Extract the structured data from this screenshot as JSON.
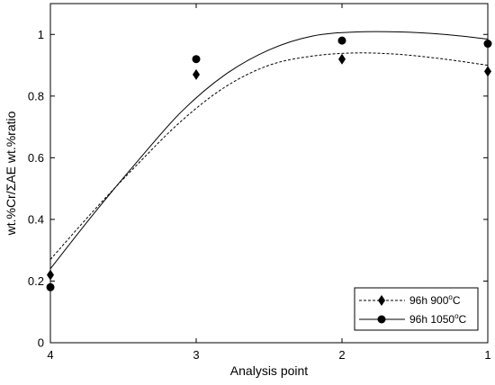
{
  "chart_data": {
    "type": "scatter",
    "title": "",
    "xlabel": "Analysis point",
    "ylabel": "wt.%Cr/ΣAE wt.%ratio",
    "x_reversed": true,
    "xlim": [
      1,
      4
    ],
    "ylim": [
      0,
      1.1
    ],
    "xticks": [
      "4",
      "3",
      "2",
      "1"
    ],
    "xtick_values": [
      4,
      3,
      2,
      1
    ],
    "yticks": [
      "0",
      "0.2",
      "0.4",
      "0.6",
      "0.8",
      "1"
    ],
    "ytick_values": [
      0,
      0.2,
      0.4,
      0.6,
      0.8,
      1
    ],
    "grid": false,
    "legend_position": "bottom-right",
    "series": [
      {
        "name": "96h 900",
        "legend_sup": "o",
        "legend_suffix": "C",
        "marker": "diamond",
        "line_style": "dashed",
        "color": "#000000",
        "x": [
          4,
          3,
          2,
          1
        ],
        "values": [
          0.22,
          0.87,
          0.92,
          0.88
        ],
        "trend_x": [
          4,
          3.7,
          3.4,
          3.1,
          2.8,
          2.5,
          2.2,
          1.9,
          1.6,
          1.3,
          1.0
        ],
        "trend_y": [
          0.27,
          0.43,
          0.58,
          0.72,
          0.83,
          0.9,
          0.93,
          0.94,
          0.935,
          0.92,
          0.9
        ]
      },
      {
        "name": "96h 1050",
        "legend_sup": "o",
        "legend_suffix": "C",
        "marker": "circle",
        "line_style": "solid",
        "color": "#000000",
        "x": [
          4,
          3,
          2,
          1
        ],
        "values": [
          0.18,
          0.92,
          0.98,
          0.97
        ],
        "trend_x": [
          4,
          3.7,
          3.4,
          3.1,
          2.8,
          2.5,
          2.2,
          1.9,
          1.6,
          1.3,
          1.0
        ],
        "trend_y": [
          0.24,
          0.42,
          0.59,
          0.75,
          0.87,
          0.95,
          0.995,
          1.008,
          1.008,
          1.0,
          0.985
        ]
      }
    ]
  }
}
